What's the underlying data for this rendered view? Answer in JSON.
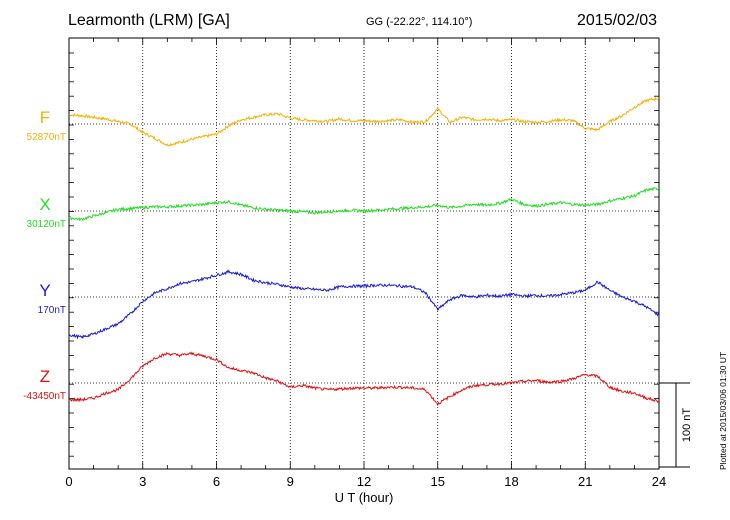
{
  "header": {
    "station": "Learmonth (LRM)  [GA]",
    "coords": "GG (-22.22°, 114.10°)",
    "date": "2015/02/03"
  },
  "footnote": "Plotted at 2015/03/06 01:30 UT",
  "chart_data": {
    "type": "line",
    "title": "Learmonth (LRM)  [GA]",
    "xlabel": "U T (hour)",
    "xlim": [
      0,
      24
    ],
    "xticks": [
      "0",
      "3",
      "6",
      "9",
      "12",
      "15",
      "18",
      "21",
      "24"
    ],
    "grid": true,
    "scale_bar": "100 nT",
    "x": [
      0,
      0.5,
      1,
      1.5,
      2,
      2.5,
      3,
      3.5,
      4,
      4.5,
      5,
      5.5,
      6,
      6.5,
      7,
      7.5,
      8,
      8.5,
      9,
      9.5,
      10,
      10.5,
      11,
      11.5,
      12,
      12.5,
      13,
      13.5,
      14,
      14.5,
      15,
      15.5,
      16,
      16.5,
      17,
      17.5,
      18,
      18.5,
      19,
      19.5,
      20,
      20.5,
      21,
      21.5,
      22,
      22.5,
      23,
      23.5,
      24
    ],
    "series": [
      {
        "name": "F",
        "baseline": "52870nT",
        "color": "#f5b000",
        "values": [
          11,
          10,
          8,
          6,
          3,
          0,
          -10,
          -17,
          -25,
          -22,
          -18,
          -15,
          -12,
          -2,
          5,
          8,
          11,
          12,
          7,
          5,
          4,
          3,
          6,
          4,
          4,
          3,
          4,
          5,
          2,
          3,
          18,
          2,
          8,
          5,
          6,
          4,
          5,
          3,
          2,
          3,
          5,
          4,
          -5,
          -7,
          3,
          10,
          20,
          28,
          31
        ]
      },
      {
        "name": "X",
        "baseline": "30120nT",
        "color": "#22dd22",
        "values": [
          -8,
          -10,
          -6,
          -2,
          2,
          3,
          4,
          5,
          5,
          6,
          7,
          8,
          10,
          11,
          7,
          4,
          2,
          1,
          0,
          -1,
          -2,
          -1,
          0,
          1,
          0,
          1,
          2,
          3,
          4,
          5,
          7,
          4,
          6,
          8,
          7,
          9,
          14,
          8,
          6,
          8,
          10,
          8,
          7,
          8,
          12,
          15,
          18,
          25,
          27
        ]
      },
      {
        "name": "Y",
        "baseline": "170nT",
        "color": "#1a1adc",
        "values": [
          -45,
          -48,
          -44,
          -38,
          -32,
          -20,
          -5,
          5,
          10,
          16,
          18,
          22,
          26,
          30,
          27,
          20,
          17,
          15,
          12,
          10,
          9,
          8,
          12,
          13,
          13,
          14,
          14,
          13,
          12,
          5,
          -15,
          -3,
          2,
          0,
          2,
          1,
          3,
          1,
          2,
          1,
          3,
          5,
          8,
          18,
          8,
          0,
          -5,
          -12,
          -22
        ]
      },
      {
        "name": "Z",
        "baseline": "-43450nT",
        "color": "#e01010",
        "values": [
          -20,
          -20,
          -18,
          -12,
          -8,
          5,
          20,
          30,
          35,
          33,
          35,
          32,
          28,
          18,
          15,
          12,
          6,
          2,
          -5,
          -3,
          -6,
          -8,
          -7,
          -6,
          -6,
          -6,
          -5,
          -5,
          -6,
          -8,
          -25,
          -16,
          -8,
          -3,
          -2,
          -1,
          0,
          2,
          3,
          1,
          2,
          5,
          10,
          8,
          -5,
          -10,
          -12,
          -18,
          -22
        ]
      }
    ]
  }
}
